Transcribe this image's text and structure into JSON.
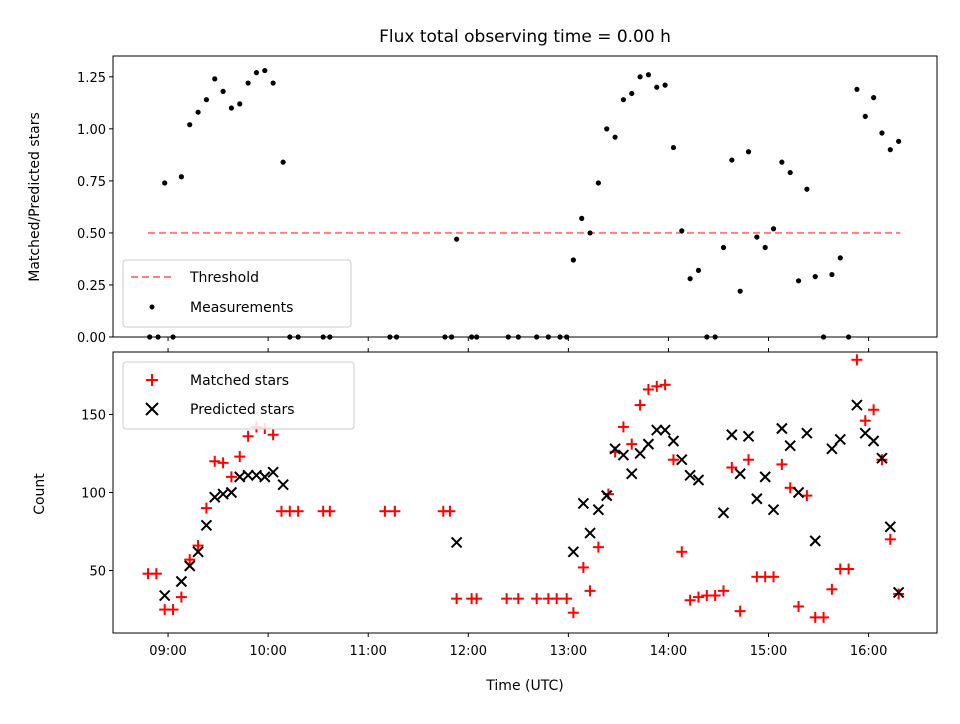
{
  "chart_data": [
    {
      "type": "scatter",
      "title": "Flux total observing time = 0.00 h",
      "xlabel": "",
      "ylabel": "Matched/Predicted stars",
      "xlim": [
        "08:27",
        "16:41"
      ],
      "ylim": [
        0,
        1.35
      ],
      "yticks": [
        0.0,
        0.25,
        0.5,
        0.75,
        1.0,
        1.25
      ],
      "ytick_labels": [
        "0.00",
        "0.25",
        "0.50",
        "0.75",
        "1.00",
        "1.25"
      ],
      "legend_position": "lower-left",
      "grid": false,
      "series": [
        {
          "name": "Threshold",
          "kind": "line",
          "style": "dashed",
          "color": "#ff7f7f",
          "points": [
            [
              "08:48",
              0.5
            ],
            [
              "16:19",
              0.5
            ]
          ]
        },
        {
          "name": "Measurements",
          "kind": "scatter",
          "marker": "dot",
          "color": "#000000",
          "points": [
            [
              "08:49",
              0.0
            ],
            [
              "08:54",
              0.0
            ],
            [
              "08:58",
              0.74
            ],
            [
              "09:03",
              0.0
            ],
            [
              "09:08",
              0.77
            ],
            [
              "09:13",
              1.02
            ],
            [
              "09:18",
              1.08
            ],
            [
              "09:23",
              1.14
            ],
            [
              "09:28",
              1.24
            ],
            [
              "09:33",
              1.18
            ],
            [
              "09:38",
              1.1
            ],
            [
              "09:43",
              1.12
            ],
            [
              "09:48",
              1.22
            ],
            [
              "09:53",
              1.27
            ],
            [
              "09:58",
              1.28
            ],
            [
              "10:03",
              1.22
            ],
            [
              "10:09",
              0.84
            ],
            [
              "10:13",
              0.0
            ],
            [
              "10:18",
              0.0
            ],
            [
              "10:33",
              0.0
            ],
            [
              "10:37",
              0.0
            ],
            [
              "11:13",
              0.0
            ],
            [
              "11:17",
              0.0
            ],
            [
              "11:46",
              0.0
            ],
            [
              "11:50",
              0.0
            ],
            [
              "11:53",
              0.47
            ],
            [
              "12:02",
              0.0
            ],
            [
              "12:05",
              0.0
            ],
            [
              "12:24",
              0.0
            ],
            [
              "12:30",
              0.0
            ],
            [
              "12:41",
              0.0
            ],
            [
              "12:48",
              0.0
            ],
            [
              "12:55",
              0.0
            ],
            [
              "12:59",
              0.0
            ],
            [
              "13:03",
              0.37
            ],
            [
              "13:08",
              0.57
            ],
            [
              "13:13",
              0.5
            ],
            [
              "13:18",
              0.74
            ],
            [
              "13:23",
              1.0
            ],
            [
              "13:28",
              0.96
            ],
            [
              "13:33",
              1.14
            ],
            [
              "13:38",
              1.17
            ],
            [
              "13:43",
              1.25
            ],
            [
              "13:48",
              1.26
            ],
            [
              "13:53",
              1.2
            ],
            [
              "13:58",
              1.21
            ],
            [
              "14:03",
              0.91
            ],
            [
              "14:08",
              0.51
            ],
            [
              "14:13",
              0.28
            ],
            [
              "14:18",
              0.32
            ],
            [
              "14:23",
              0.0
            ],
            [
              "14:28",
              0.0
            ],
            [
              "14:33",
              0.43
            ],
            [
              "14:38",
              0.85
            ],
            [
              "14:43",
              0.22
            ],
            [
              "14:48",
              0.89
            ],
            [
              "14:53",
              0.48
            ],
            [
              "14:58",
              0.43
            ],
            [
              "15:03",
              0.52
            ],
            [
              "15:08",
              0.84
            ],
            [
              "15:13",
              0.79
            ],
            [
              "15:18",
              0.27
            ],
            [
              "15:23",
              0.71
            ],
            [
              "15:28",
              0.29
            ],
            [
              "15:33",
              0.0
            ],
            [
              "15:38",
              0.3
            ],
            [
              "15:43",
              0.38
            ],
            [
              "15:48",
              0.0
            ],
            [
              "15:53",
              1.19
            ],
            [
              "15:58",
              1.06
            ],
            [
              "16:03",
              1.15
            ],
            [
              "16:08",
              0.98
            ],
            [
              "16:13",
              0.9
            ],
            [
              "16:18",
              0.94
            ]
          ]
        }
      ]
    },
    {
      "type": "scatter",
      "title": "",
      "xlabel": "Time (UTC)",
      "ylabel": "Count",
      "xlim": [
        "08:27",
        "16:41"
      ],
      "ylim": [
        10,
        190
      ],
      "yticks": [
        50,
        100,
        150
      ],
      "ytick_labels": [
        "50",
        "100",
        "150"
      ],
      "xticks": [
        "09:00",
        "10:00",
        "11:00",
        "12:00",
        "13:00",
        "14:00",
        "15:00",
        "16:00"
      ],
      "xtick_labels": [
        "09:00",
        "10:00",
        "11:00",
        "12:00",
        "13:00",
        "14:00",
        "15:00",
        "16:00"
      ],
      "legend_position": "upper-left",
      "grid": false,
      "series": [
        {
          "name": "Matched stars",
          "kind": "scatter",
          "marker": "plus",
          "color": "#ff0000",
          "points": [
            [
              "08:48",
              48
            ],
            [
              "08:53",
              48
            ],
            [
              "08:58",
              25
            ],
            [
              "09:03",
              25
            ],
            [
              "09:08",
              33
            ],
            [
              "09:13",
              57
            ],
            [
              "09:18",
              66
            ],
            [
              "09:23",
              90
            ],
            [
              "09:28",
              120
            ],
            [
              "09:33",
              119
            ],
            [
              "09:38",
              110
            ],
            [
              "09:43",
              123
            ],
            [
              "09:48",
              136
            ],
            [
              "09:53",
              142
            ],
            [
              "09:58",
              141
            ],
            [
              "10:03",
              137
            ],
            [
              "10:08",
              88
            ],
            [
              "10:13",
              88
            ],
            [
              "10:18",
              88
            ],
            [
              "10:33",
              88
            ],
            [
              "10:37",
              88
            ],
            [
              "11:10",
              88
            ],
            [
              "11:16",
              88
            ],
            [
              "11:45",
              88
            ],
            [
              "11:49",
              88
            ],
            [
              "11:53",
              32
            ],
            [
              "12:02",
              32
            ],
            [
              "12:05",
              32
            ],
            [
              "12:23",
              32
            ],
            [
              "12:30",
              32
            ],
            [
              "12:41",
              32
            ],
            [
              "12:48",
              32
            ],
            [
              "12:53",
              32
            ],
            [
              "12:59",
              32
            ],
            [
              "13:03",
              23
            ],
            [
              "13:09",
              52
            ],
            [
              "13:13",
              37
            ],
            [
              "13:18",
              65
            ],
            [
              "13:24",
              99
            ],
            [
              "13:28",
              126
            ],
            [
              "13:33",
              142
            ],
            [
              "13:38",
              131
            ],
            [
              "13:43",
              156
            ],
            [
              "13:48",
              166
            ],
            [
              "13:53",
              168
            ],
            [
              "13:58",
              169
            ],
            [
              "14:03",
              121
            ],
            [
              "14:08",
              62
            ],
            [
              "14:13",
              31
            ],
            [
              "14:18",
              33
            ],
            [
              "14:23",
              34
            ],
            [
              "14:28",
              34
            ],
            [
              "14:33",
              37
            ],
            [
              "14:38",
              116
            ],
            [
              "14:43",
              24
            ],
            [
              "14:48",
              121
            ],
            [
              "14:53",
              46
            ],
            [
              "14:58",
              46
            ],
            [
              "15:03",
              46
            ],
            [
              "15:08",
              118
            ],
            [
              "15:13",
              103
            ],
            [
              "15:18",
              27
            ],
            [
              "15:23",
              98
            ],
            [
              "15:28",
              20
            ],
            [
              "15:33",
              20
            ],
            [
              "15:38",
              38
            ],
            [
              "15:43",
              51
            ],
            [
              "15:48",
              51
            ],
            [
              "15:53",
              185
            ],
            [
              "15:58",
              146
            ],
            [
              "16:03",
              153
            ],
            [
              "16:08",
              121
            ],
            [
              "16:13",
              70
            ],
            [
              "16:18",
              35
            ]
          ]
        },
        {
          "name": "Predicted stars",
          "kind": "scatter",
          "marker": "x",
          "color": "#000000",
          "points": [
            [
              "08:58",
              34
            ],
            [
              "09:08",
              43
            ],
            [
              "09:13",
              53
            ],
            [
              "09:18",
              62
            ],
            [
              "09:23",
              79
            ],
            [
              "09:28",
              97
            ],
            [
              "09:33",
              99
            ],
            [
              "09:38",
              100
            ],
            [
              "09:43",
              110
            ],
            [
              "09:48",
              111
            ],
            [
              "09:53",
              111
            ],
            [
              "09:58",
              110
            ],
            [
              "10:03",
              113
            ],
            [
              "10:09",
              105
            ],
            [
              "11:53",
              68
            ],
            [
              "13:03",
              62
            ],
            [
              "13:09",
              93
            ],
            [
              "13:13",
              74
            ],
            [
              "13:18",
              89
            ],
            [
              "13:23",
              98
            ],
            [
              "13:28",
              128
            ],
            [
              "13:33",
              124
            ],
            [
              "13:38",
              112
            ],
            [
              "13:43",
              125
            ],
            [
              "13:48",
              131
            ],
            [
              "13:53",
              140
            ],
            [
              "13:58",
              140
            ],
            [
              "14:03",
              133
            ],
            [
              "14:08",
              121
            ],
            [
              "14:13",
              111
            ],
            [
              "14:18",
              108
            ],
            [
              "14:33",
              87
            ],
            [
              "14:38",
              137
            ],
            [
              "14:43",
              112
            ],
            [
              "14:48",
              136
            ],
            [
              "14:53",
              96
            ],
            [
              "14:58",
              110
            ],
            [
              "15:03",
              89
            ],
            [
              "15:08",
              141
            ],
            [
              "15:13",
              130
            ],
            [
              "15:18",
              100
            ],
            [
              "15:23",
              138
            ],
            [
              "15:28",
              69
            ],
            [
              "15:38",
              128
            ],
            [
              "15:43",
              134
            ],
            [
              "15:53",
              156
            ],
            [
              "15:58",
              138
            ],
            [
              "16:03",
              133
            ],
            [
              "16:08",
              122
            ],
            [
              "16:13",
              78
            ],
            [
              "16:18",
              36
            ]
          ]
        }
      ]
    }
  ]
}
